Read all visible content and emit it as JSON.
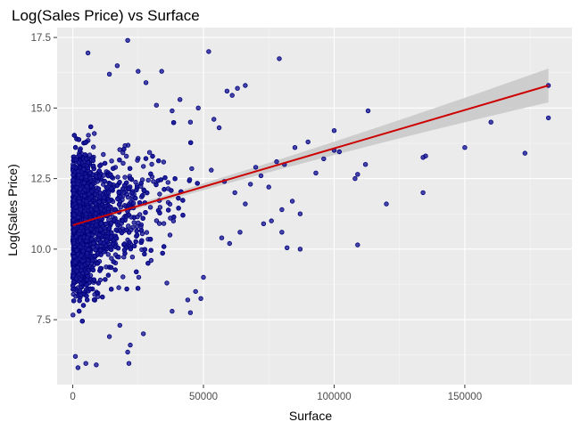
{
  "chart_data": {
    "type": "scatter",
    "title": "Log(Sales Price) vs Surface",
    "xlabel": "Surface",
    "ylabel": "Log(Sales Price)",
    "xlim": [
      -6000,
      191000
    ],
    "ylim": [
      5.2,
      17.85
    ],
    "x_ticks": [
      0,
      50000,
      100000,
      150000
    ],
    "x_tick_labels": [
      "0",
      "50000",
      "100000",
      "150000"
    ],
    "y_ticks": [
      7.5,
      10.0,
      12.5,
      15.0,
      17.5
    ],
    "y_tick_labels": [
      "7.5",
      "10.0",
      "12.5",
      "15.0",
      "17.5"
    ],
    "grid": true,
    "legend": "none",
    "colors": {
      "panel": "#ebebeb",
      "grid_major": "#ffffff",
      "point_fill": "#1a1a99",
      "point_stroke": "#00007a",
      "trend_line": "#cc0000",
      "confidence_band": "#c8c8c8"
    },
    "trend_line": {
      "method": "linear",
      "x": [
        0,
        182000
      ],
      "y": [
        10.85,
        15.8
      ],
      "ci_halfwidth": [
        0.08,
        0.6
      ]
    },
    "cluster": {
      "description_count": 3000,
      "x_range_core": [
        0,
        30000
      ],
      "y_range": [
        5.8,
        17.4
      ]
    },
    "points": [
      [
        21000,
        17.4
      ],
      [
        5800,
        16.95
      ],
      [
        52000,
        17.0
      ],
      [
        79000,
        16.75
      ],
      [
        34000,
        16.3
      ],
      [
        25000,
        16.3
      ],
      [
        17000,
        16.5
      ],
      [
        14000,
        16.2
      ],
      [
        66000,
        15.8
      ],
      [
        63000,
        15.7
      ],
      [
        59000,
        15.6
      ],
      [
        61000,
        15.45
      ],
      [
        48000,
        15.0
      ],
      [
        45000,
        14.5
      ],
      [
        38000,
        14.9
      ],
      [
        32000,
        15.1
      ],
      [
        28000,
        15.9
      ],
      [
        41000,
        15.3
      ],
      [
        56000,
        14.3
      ],
      [
        54000,
        14.6
      ],
      [
        113000,
        14.9
      ],
      [
        160000,
        14.5
      ],
      [
        182000,
        14.65
      ],
      [
        182000,
        15.8
      ],
      [
        100000,
        14.2
      ],
      [
        100000,
        13.5
      ],
      [
        102000,
        13.45
      ],
      [
        96000,
        13.2
      ],
      [
        90000,
        13.8
      ],
      [
        85000,
        13.6
      ],
      [
        81000,
        13.0
      ],
      [
        78000,
        13.1
      ],
      [
        150000,
        13.6
      ],
      [
        173000,
        13.4
      ],
      [
        135000,
        13.3
      ],
      [
        134000,
        13.25
      ],
      [
        112000,
        13.0
      ],
      [
        109000,
        12.65
      ],
      [
        108000,
        12.5
      ],
      [
        93000,
        12.7
      ],
      [
        75000,
        12.2
      ],
      [
        72000,
        12.6
      ],
      [
        70000,
        12.9
      ],
      [
        68000,
        12.3
      ],
      [
        62000,
        12.0
      ],
      [
        58000,
        12.4
      ],
      [
        53000,
        12.8
      ],
      [
        66000,
        11.6
      ],
      [
        84000,
        11.7
      ],
      [
        87000,
        11.25
      ],
      [
        80000,
        11.4
      ],
      [
        76000,
        11.0
      ],
      [
        134000,
        12.0
      ],
      [
        120000,
        11.6
      ],
      [
        109000,
        10.15
      ],
      [
        82000,
        10.05
      ],
      [
        87000,
        10.0
      ],
      [
        80000,
        10.6
      ],
      [
        73000,
        10.9
      ],
      [
        64000,
        10.6
      ],
      [
        60000,
        10.2
      ],
      [
        57000,
        10.4
      ],
      [
        50000,
        9.0
      ],
      [
        47000,
        8.5
      ],
      [
        44000,
        8.2
      ],
      [
        49000,
        8.25
      ],
      [
        45000,
        7.75
      ],
      [
        38000,
        7.8
      ],
      [
        36000,
        8.8
      ],
      [
        30000,
        9.6
      ],
      [
        27000,
        7.0
      ],
      [
        22000,
        6.6
      ],
      [
        21000,
        6.35
      ],
      [
        21500,
        5.95
      ],
      [
        5000,
        5.95
      ],
      [
        2000,
        5.8
      ],
      [
        1000,
        6.2
      ],
      [
        9000,
        5.9
      ],
      [
        14000,
        6.9
      ],
      [
        18000,
        7.3
      ]
    ]
  }
}
